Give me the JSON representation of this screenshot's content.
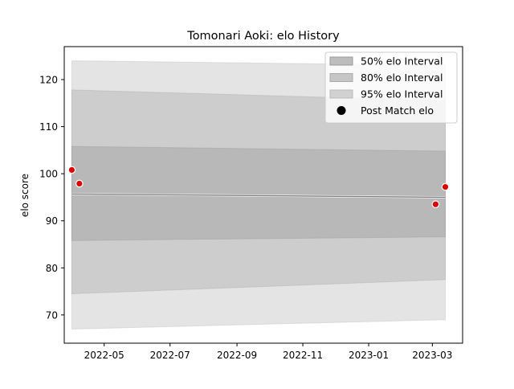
{
  "chart_data": {
    "type": "area",
    "title": "Tomonari Aoki: elo History",
    "xlabel": "",
    "ylabel": "elo score",
    "x_range": [
      "2022-03-25",
      "2023-03-29"
    ],
    "ylim": [
      64,
      127
    ],
    "x_ticks": [
      "2022-05-01",
      "2022-07-01",
      "2022-09-01",
      "2022-11-01",
      "2023-01-01",
      "2023-03-01"
    ],
    "x_tick_labels": [
      "2022-05",
      "2022-07",
      "2022-09",
      "2022-11",
      "2023-01",
      "2023-03"
    ],
    "y_ticks": [
      70,
      80,
      90,
      100,
      110,
      120
    ],
    "y_tick_labels": [
      "70",
      "80",
      "90",
      "100",
      "110",
      "120"
    ],
    "grid": false,
    "legend_position": "upper right",
    "band_dates": [
      "2022-04-01",
      "2023-03-13"
    ],
    "mean": [
      95.7,
      95.0
    ],
    "bands": [
      {
        "name": "95% elo Interval",
        "upper": [
          124.0,
          123.0
        ],
        "lower": [
          67.0,
          69.0
        ],
        "color": "#bbbbbb",
        "opacity": 0.4
      },
      {
        "name": "80% elo Interval",
        "upper": [
          117.8,
          115.5
        ],
        "lower": [
          74.5,
          77.5
        ],
        "color": "#aaaaaa",
        "opacity": 0.4
      },
      {
        "name": "50% elo Interval",
        "upper": [
          105.8,
          104.8
        ],
        "lower": [
          85.8,
          86.6
        ],
        "color": "#999999",
        "opacity": 0.4
      }
    ],
    "post_match": {
      "name": "Post Match elo",
      "dates": [
        "2022-04-01",
        "2022-04-08",
        "2023-03-04",
        "2023-03-13"
      ],
      "values": [
        100.8,
        97.9,
        93.5,
        97.2
      ]
    },
    "legend_entries": [
      "50% elo Interval",
      "80% elo Interval",
      "95% elo Interval",
      "Post Match elo"
    ],
    "colors": {
      "mean_line": "#808080",
      "marker_fill": "#dd0000",
      "marker_edge": "#ffffff"
    }
  }
}
